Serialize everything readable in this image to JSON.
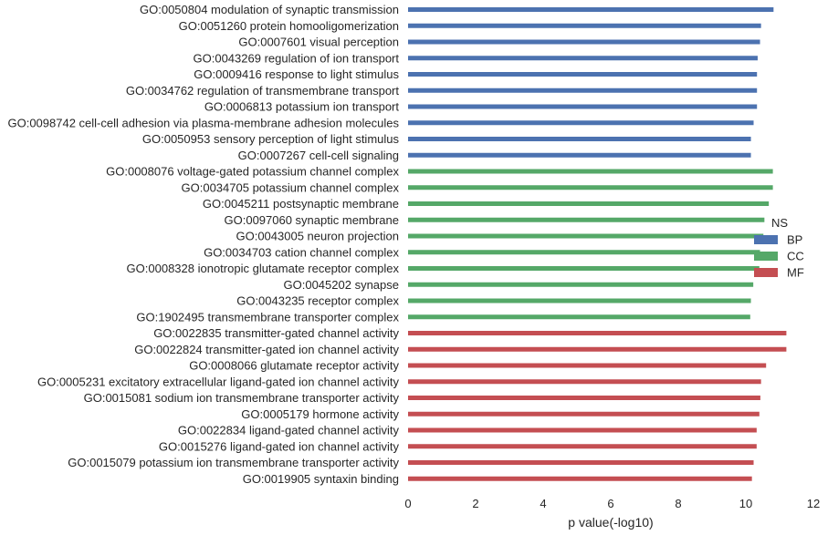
{
  "chart_data": {
    "type": "bar",
    "orientation": "horizontal",
    "title": "",
    "xlabel": "p value(-log10)",
    "ylabel": "",
    "xlim": [
      0,
      12
    ],
    "xticks": [
      "0",
      "2",
      "4",
      "6",
      "8",
      "10",
      "12"
    ],
    "grid": false,
    "legend": {
      "placement": "center-right",
      "title": "NS",
      "entries": [
        {
          "name": "BP",
          "color": "#4c72b0"
        },
        {
          "name": "CC",
          "color": "#55a868"
        },
        {
          "name": "MF",
          "color": "#c44e52"
        }
      ]
    },
    "categories": [
      {
        "label": "GO:0050804 modulation of synaptic transmission",
        "value": 10.82,
        "group": "BP"
      },
      {
        "label": "GO:0051260 protein homooligomerization",
        "value": 10.45,
        "group": "BP"
      },
      {
        "label": "GO:0007601 visual perception",
        "value": 10.42,
        "group": "BP"
      },
      {
        "label": "GO:0043269 regulation of ion transport",
        "value": 10.35,
        "group": "BP"
      },
      {
        "label": "GO:0009416 response to light stimulus",
        "value": 10.33,
        "group": "BP"
      },
      {
        "label": "GO:0034762 regulation of transmembrane transport",
        "value": 10.33,
        "group": "BP"
      },
      {
        "label": "GO:0006813 potassium ion transport",
        "value": 10.33,
        "group": "BP"
      },
      {
        "label": "GO:0098742 cell-cell adhesion via plasma-membrane adhesion molecules",
        "value": 10.23,
        "group": "BP"
      },
      {
        "label": "GO:0050953 sensory perception of light stimulus",
        "value": 10.15,
        "group": "BP"
      },
      {
        "label": "GO:0007267 cell-cell signaling",
        "value": 10.15,
        "group": "BP"
      },
      {
        "label": "GO:0008076 voltage-gated potassium channel complex",
        "value": 10.8,
        "group": "CC"
      },
      {
        "label": "GO:0034705 potassium channel complex",
        "value": 10.8,
        "group": "CC"
      },
      {
        "label": "GO:0045211 postsynaptic membrane",
        "value": 10.68,
        "group": "CC"
      },
      {
        "label": "GO:0097060 synaptic membrane",
        "value": 10.55,
        "group": "CC"
      },
      {
        "label": "GO:0043005 neuron projection",
        "value": 10.52,
        "group": "CC"
      },
      {
        "label": "GO:0034703 cation channel complex",
        "value": 10.42,
        "group": "CC"
      },
      {
        "label": "GO:0008328 ionotropic glutamate receptor complex",
        "value": 10.4,
        "group": "CC"
      },
      {
        "label": "GO:0045202 synapse",
        "value": 10.22,
        "group": "CC"
      },
      {
        "label": "GO:0043235 receptor complex",
        "value": 10.15,
        "group": "CC"
      },
      {
        "label": "GO:1902495 transmembrane transporter complex",
        "value": 10.13,
        "group": "CC"
      },
      {
        "label": "GO:0022835 transmitter-gated channel activity",
        "value": 11.2,
        "group": "MF"
      },
      {
        "label": "GO:0022824 transmitter-gated ion channel activity",
        "value": 11.2,
        "group": "MF"
      },
      {
        "label": "GO:0008066 glutamate receptor activity",
        "value": 10.6,
        "group": "MF"
      },
      {
        "label": "GO:0005231 excitatory extracellular ligand-gated ion channel activity",
        "value": 10.45,
        "group": "MF"
      },
      {
        "label": "GO:0015081 sodium ion transmembrane transporter activity",
        "value": 10.43,
        "group": "MF"
      },
      {
        "label": "GO:0005179 hormone activity",
        "value": 10.4,
        "group": "MF"
      },
      {
        "label": "GO:0022834 ligand-gated channel activity",
        "value": 10.32,
        "group": "MF"
      },
      {
        "label": "GO:0015276 ligand-gated ion channel activity",
        "value": 10.32,
        "group": "MF"
      },
      {
        "label": "GO:0015079 potassium ion transmembrane transporter activity",
        "value": 10.23,
        "group": "MF"
      },
      {
        "label": "GO:0019905 syntaxin binding",
        "value": 10.18,
        "group": "MF"
      }
    ]
  }
}
